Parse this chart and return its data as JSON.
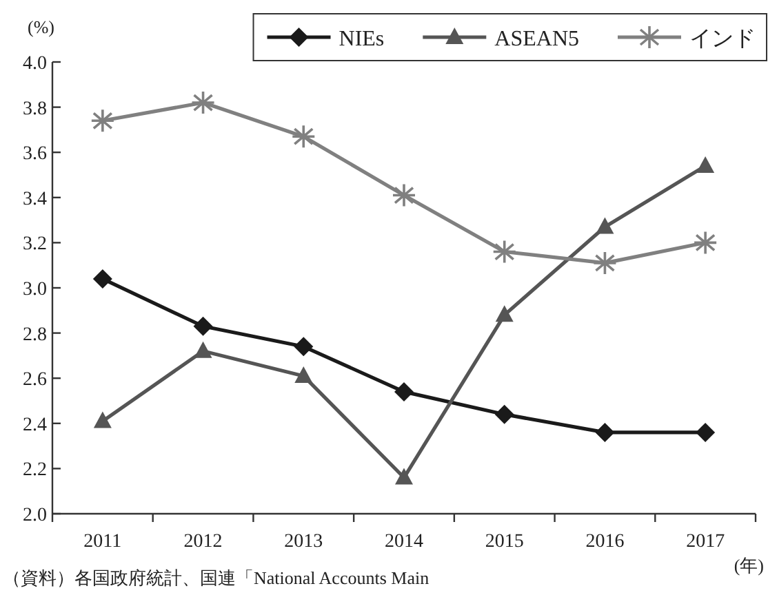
{
  "chart_data": {
    "type": "line",
    "ylabel": "(%)",
    "xlabel": "(年)",
    "categories": [
      "2011",
      "2012",
      "2013",
      "2014",
      "2015",
      "2016",
      "2017"
    ],
    "series": [
      {
        "name": "NIEs",
        "color": "#1a1a1a",
        "marker": "diamond",
        "values": [
          3.04,
          2.83,
          2.74,
          2.54,
          2.44,
          2.36,
          2.36
        ]
      },
      {
        "name": "ASEAN5",
        "color": "#555555",
        "marker": "triangle",
        "values": [
          2.41,
          2.72,
          2.61,
          2.16,
          2.88,
          3.27,
          3.54
        ]
      },
      {
        "name": "インド",
        "color": "#808080",
        "marker": "cross",
        "values": [
          3.74,
          3.82,
          3.67,
          3.41,
          3.16,
          3.11,
          3.2
        ]
      }
    ],
    "ylim": [
      2.0,
      4.0
    ],
    "yticks": [
      {
        "value": 2.0,
        "label": "2.0"
      },
      2.2,
      2.4,
      2.6,
      2.8,
      {
        "value": 3.0,
        "label": "3.0"
      },
      3.2,
      3.4,
      3.6,
      3.8,
      {
        "value": 4.0,
        "label": "4.0"
      }
    ],
    "line_style": "solid",
    "legend": "top right",
    "annotations": [
      "（資料）各国政府統計、国連「National Accounts Main"
    ]
  }
}
